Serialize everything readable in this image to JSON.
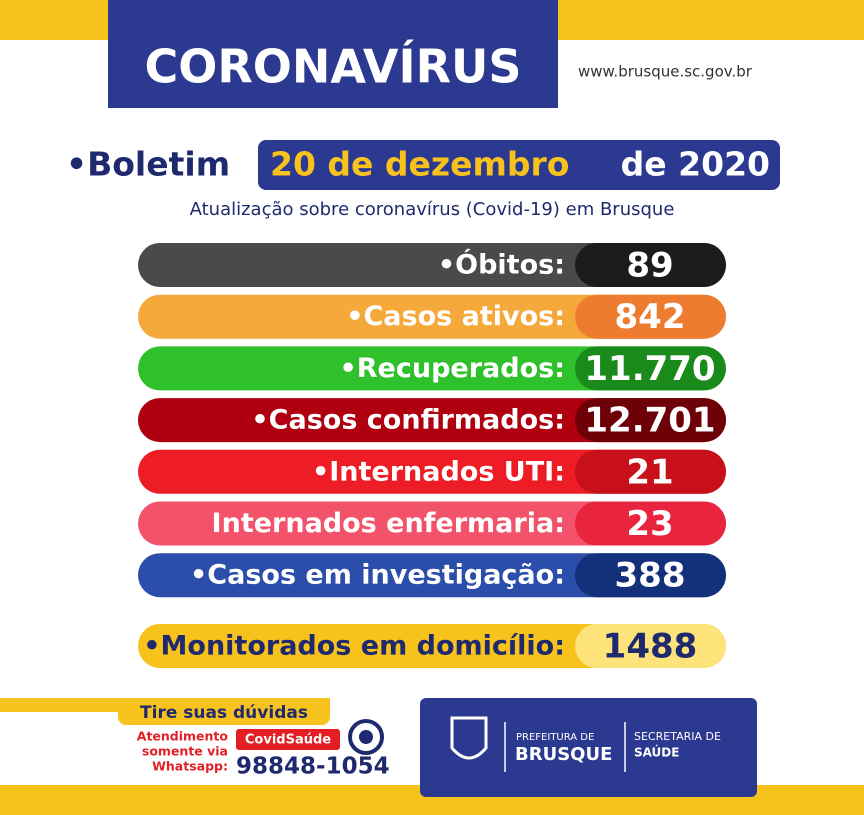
{
  "header": {
    "title": "CORONAVÍRUS",
    "url": "www.brusque.sc.gov.br"
  },
  "bulletin": {
    "prefix": "•Boletim",
    "date": "20 de dezembro",
    "year": "de 2020",
    "subtitle": "Atualização sobre coronavírus (Covid-19) em Brusque"
  },
  "rows": [
    {
      "label": "•Óbitos:",
      "value": "89",
      "color": "#4a4a4a",
      "value_color": "#1c1c1c"
    },
    {
      "label": "•Casos ativos:",
      "value": "842",
      "color": "#f5a93a",
      "value_color": "#ee7c30"
    },
    {
      "label": "•Recuperados:",
      "value": "11.770",
      "color": "#2fc12b",
      "value_color": "#1a8a1a"
    },
    {
      "label": "•Casos confirmados:",
      "value": "12.701",
      "color": "#b00010",
      "value_color": "#6e0008"
    },
    {
      "label": "•Internados UTI:",
      "value": "21",
      "color": "#ee1c25",
      "value_color": "#c8101a"
    },
    {
      "label": "Internados enfermaria:",
      "value": "23",
      "color": "#f2536a",
      "value_color": "#e8243f"
    },
    {
      "label": "•Casos em investigação:",
      "value": "388",
      "color": "#2b4eaa",
      "value_color": "#14307a"
    }
  ],
  "highlight": {
    "label": "•Monitorados em domicílio:",
    "value": "1488",
    "color": "#f8c21c",
    "value_color": "#fde37a"
  },
  "footer": {
    "doubts": "Tire suas dúvidas",
    "contact_lines": [
      "Atendimento",
      "somente via",
      "Whatsapp:"
    ],
    "tag": "CovidSaúde",
    "phone": "98848-1054",
    "logo": {
      "line1": "PREFEITURA DE",
      "line2": "BRUSQUE",
      "line3": "SECRETARIA DE",
      "line4": "SAÚDE"
    }
  }
}
